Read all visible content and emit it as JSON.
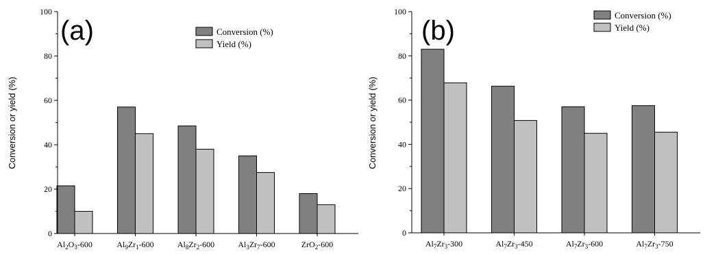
{
  "chart_data": [
    {
      "type": "bar",
      "panel_label": "(a)",
      "ylabel": "Conversion or yield (%)",
      "xlabel": "",
      "ylim": [
        0,
        100
      ],
      "yticks": [
        0,
        20,
        40,
        60,
        80,
        100
      ],
      "categories": [
        {
          "base": "Al",
          "s1": "2",
          "mid": "O",
          "s2": "3",
          "suffix": "-600"
        },
        {
          "base": "Al",
          "s1": "9",
          "mid": "Zr",
          "s2": "1",
          "suffix": "-600"
        },
        {
          "base": "Al",
          "s1": "8",
          "mid": "Zr",
          "s2": "2",
          "suffix": "-600"
        },
        {
          "base": "Al",
          "s1": "3",
          "mid": "Zr",
          "s2": "7",
          "suffix": "-600"
        },
        {
          "base": "ZrO",
          "s1": "2",
          "mid": "",
          "s2": "",
          "suffix": "-600"
        }
      ],
      "series": [
        {
          "name": "Conversion (%)",
          "color": "#808080",
          "values": [
            21.5,
            57,
            48.5,
            35,
            18
          ]
        },
        {
          "name": "Yield (%)",
          "color": "#c0c0c0",
          "values": [
            10,
            45,
            38,
            27.5,
            13
          ]
        }
      ],
      "legend": "top-right",
      "grid": false
    },
    {
      "type": "bar",
      "panel_label": "(b)",
      "ylabel": "Conversion or yield (%)",
      "xlabel": "",
      "ylim": [
        0,
        100
      ],
      "yticks": [
        0,
        20,
        40,
        60,
        80,
        100
      ],
      "categories": [
        {
          "base": "Al",
          "s1": "7",
          "mid": "Zr",
          "s2": "3",
          "suffix": "-300"
        },
        {
          "base": "Al",
          "s1": "7",
          "mid": "Zr",
          "s2": "3",
          "suffix": "-450"
        },
        {
          "base": "Al",
          "s1": "7",
          "mid": "Zr",
          "s2": "3",
          "suffix": "-600"
        },
        {
          "base": "Al",
          "s1": "7",
          "mid": "Zr",
          "s2": "3",
          "suffix": "-750"
        }
      ],
      "series": [
        {
          "name": "Conversion (%)",
          "color": "#808080",
          "values": [
            83,
            66.3,
            57,
            57.5
          ]
        },
        {
          "name": "Yield (%)",
          "color": "#c0c0c0",
          "values": [
            67.8,
            50.8,
            45,
            45.5
          ]
        }
      ],
      "legend": "top-right",
      "grid": false
    }
  ]
}
